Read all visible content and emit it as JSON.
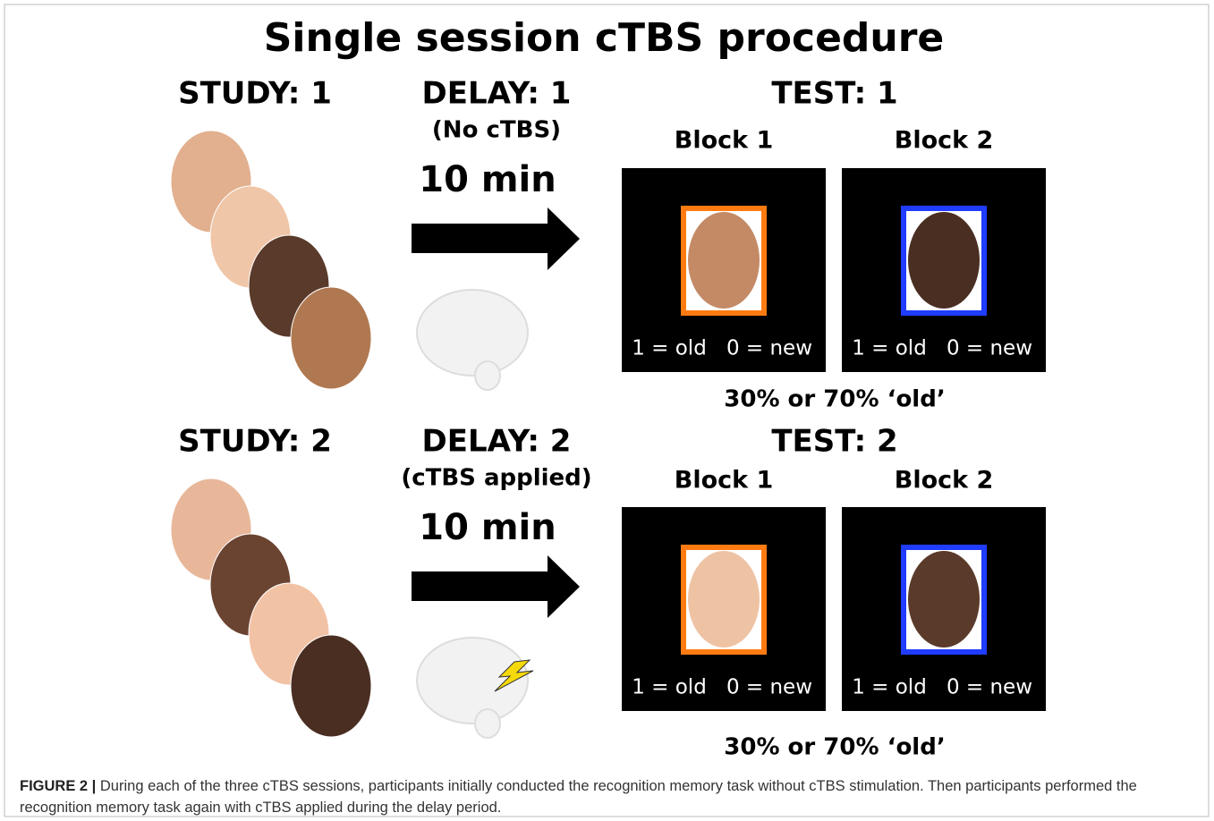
{
  "title": "Single session cTBS procedure",
  "rows": [
    {
      "study": "STUDY: 1",
      "delay": "DELAY: 1",
      "delay_note": "(No cTBS)",
      "duration": "10 min",
      "test": "TEST: 1",
      "blocks": [
        {
          "label": "Block 1",
          "left_key": "1 = old",
          "right_key": "0 = new"
        },
        {
          "label": "Block 2",
          "left_key": "1 = old",
          "right_key": "0 = new"
        }
      ],
      "proportion": "30% or 70% ‘old’"
    },
    {
      "study": "STUDY: 2",
      "delay": "DELAY: 2",
      "delay_note": "(cTBS applied)",
      "duration": "10 min",
      "test": "TEST: 2",
      "blocks": [
        {
          "label": "Block 1",
          "left_key": "1 = old",
          "right_key": "0 = new"
        },
        {
          "label": "Block 2",
          "left_key": "1 = old",
          "right_key": "0 = new"
        }
      ],
      "proportion": "30% or 70% ‘old’"
    }
  ],
  "caption": {
    "label": "FIGURE 2 |",
    "text": "During each of the three cTBS sessions, participants initially conducted the recognition memory task without cTBS stimulation. Then participants performed the recognition memory task again with cTBS applied during the delay period."
  }
}
